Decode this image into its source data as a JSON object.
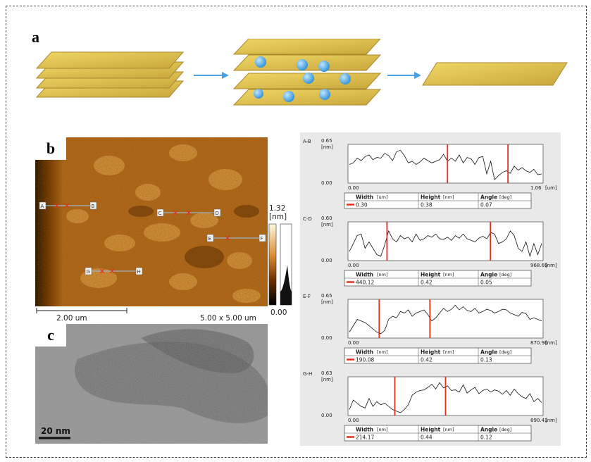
{
  "panels": {
    "a": "a",
    "b": "b",
    "c": "c"
  },
  "afm": {
    "scalebar_label": "2.00 um",
    "scan_size": "5.00 x 5.00 um",
    "colorbar_max": "1.32",
    "colorbar_unit": "[nm]",
    "colorbar_min": "0.00",
    "markers": [
      "A",
      "B",
      "C",
      "D",
      "E",
      "F",
      "G",
      "H"
    ]
  },
  "tem": {
    "scalebar_label": "20 nm"
  },
  "profiles": [
    {
      "label": "A-B",
      "ymax": "0.65",
      "yunit": "[nm]",
      "ymin": "0.00",
      "xmin": "0.00",
      "xmax": "1.06",
      "xunit": "[um]",
      "width": "0.30",
      "height": "0.38",
      "angle": "0.07",
      "width_h": "Width",
      "width_u": "[um]"
    },
    {
      "label": "C-D",
      "ymax": "0.60",
      "yunit": "[nm]",
      "ymin": "0.00",
      "xmin": "0.00",
      "xmax": "968.69",
      "xunit": "[nm]",
      "width": "440.12",
      "height": "0.42",
      "angle": "0.05",
      "width_h": "Width",
      "width_u": "[nm]"
    },
    {
      "label": "E-F",
      "ymax": "0.65",
      "yunit": "[nm]",
      "ymin": "0.00",
      "xmin": "0.00",
      "xmax": "870.90",
      "xunit": "[nm]",
      "width": "190.08",
      "height": "0.42",
      "angle": "0.13",
      "width_h": "Width",
      "width_u": "[nm]"
    },
    {
      "label": "G-H",
      "ymax": "0.63",
      "yunit": "[nm]",
      "ymin": "0.00",
      "xmin": "0.00",
      "xmax": "890.41",
      "xunit": "[nm]",
      "width": "214.17",
      "height": "0.44",
      "angle": "0.12",
      "width_h": "Width",
      "width_u": "[nm]"
    }
  ],
  "table_headers": {
    "height": "Height",
    "height_u": "[nm]",
    "angle": "Angle",
    "angle_u": "[deg]"
  },
  "colors": {
    "sheet": "#e1c14a",
    "ball": "#5ab0e6",
    "arrow": "#4a9fe0",
    "cut": "#e0301e",
    "afm_dark": "#5a2a05",
    "afm_light": "#d48a3a"
  }
}
